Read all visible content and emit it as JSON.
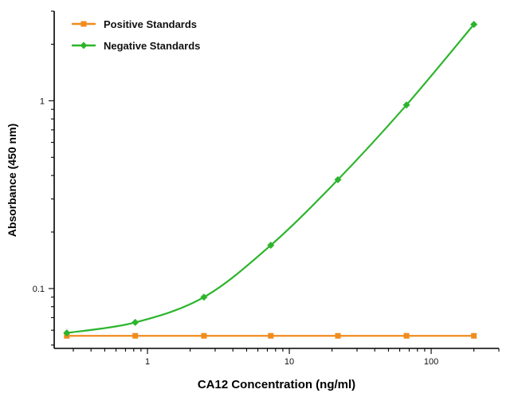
{
  "chart_data": {
    "type": "line",
    "title": "",
    "xlabel": "CA12 Concentration (ng/ml)",
    "ylabel": "Absorbance (450 nm)",
    "xscale": "log",
    "yscale": "log",
    "xlim": [
      0.22,
      300
    ],
    "ylim": [
      0.048,
      3.0
    ],
    "x_ticks": [
      1,
      10,
      100
    ],
    "x_tick_labels": [
      "1",
      "10",
      "100"
    ],
    "y_ticks": [
      0.1,
      1
    ],
    "y_tick_labels": [
      "0.1",
      "1"
    ],
    "grid": false,
    "legend_position": "top-left",
    "x": [
      0.27,
      0.82,
      2.5,
      7.4,
      22,
      67,
      200
    ],
    "series": [
      {
        "name": "Positive Standards",
        "color": "#F08C1E",
        "marker": "square",
        "values": [
          0.056,
          0.056,
          0.056,
          0.056,
          0.056,
          0.056,
          0.056
        ]
      },
      {
        "name": "Negative Standards",
        "color": "#2CB52C",
        "marker": "diamond",
        "values": [
          0.058,
          0.066,
          0.09,
          0.17,
          0.38,
          0.95,
          2.55
        ]
      }
    ]
  },
  "colors": {
    "axis": "#000000",
    "background": "#ffffff"
  }
}
